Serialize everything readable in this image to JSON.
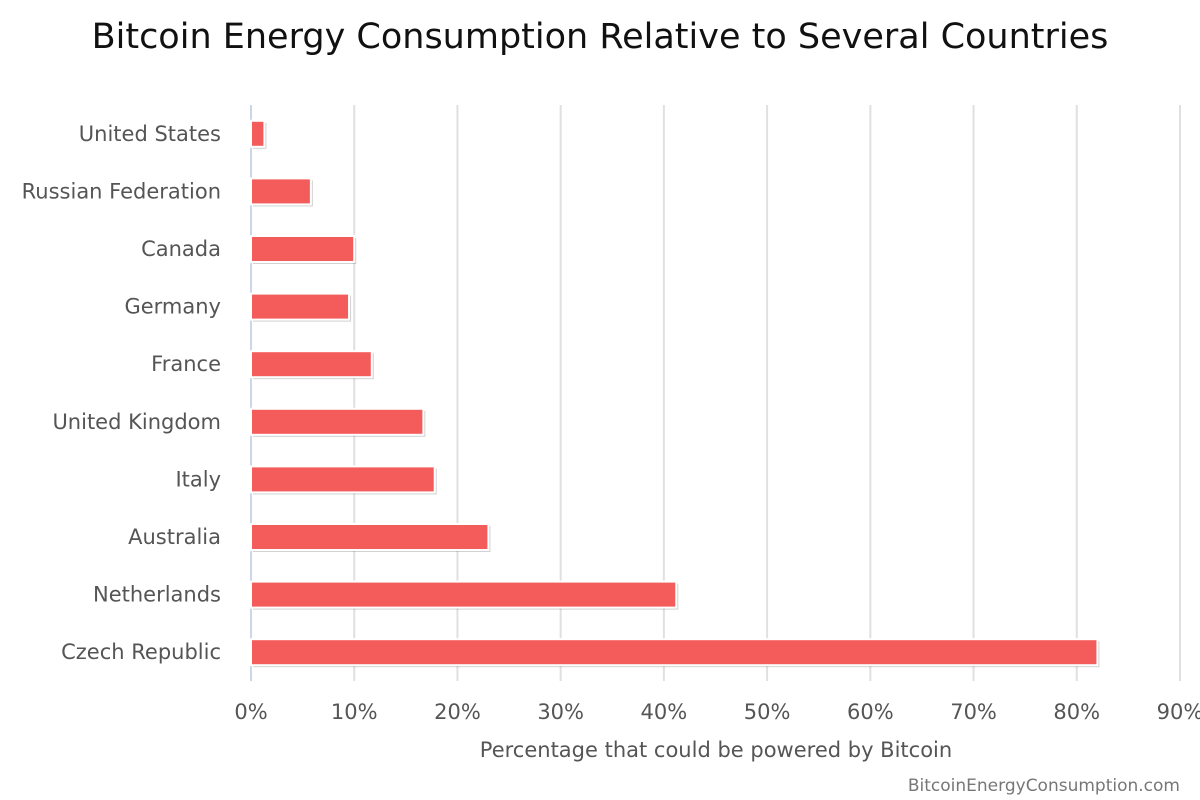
{
  "chart_data": {
    "type": "bar",
    "orientation": "horizontal",
    "title": "Bitcoin Energy Consumption Relative to Several Countries",
    "xlabel": "Percentage that could be powered by Bitcoin",
    "ylabel": "",
    "categories": [
      "United States",
      "Russian Federation",
      "Canada",
      "Germany",
      "France",
      "United Kingdom",
      "Italy",
      "Australia",
      "Netherlands",
      "Czech Republic"
    ],
    "values": [
      1.3,
      5.8,
      10.0,
      9.5,
      11.7,
      16.7,
      17.8,
      23.0,
      41.2,
      82.0
    ],
    "xlim": [
      0,
      90
    ],
    "ticks": [
      0,
      10,
      20,
      30,
      40,
      50,
      60,
      70,
      80,
      90
    ],
    "tick_labels": [
      "0%",
      "10%",
      "20%",
      "30%",
      "40%",
      "50%",
      "60%",
      "70%",
      "80%",
      "90%"
    ],
    "grid": true,
    "legend": "none",
    "bar_color": "#f45b5b"
  },
  "credit": "BitcoinEnergyConsumption.com"
}
